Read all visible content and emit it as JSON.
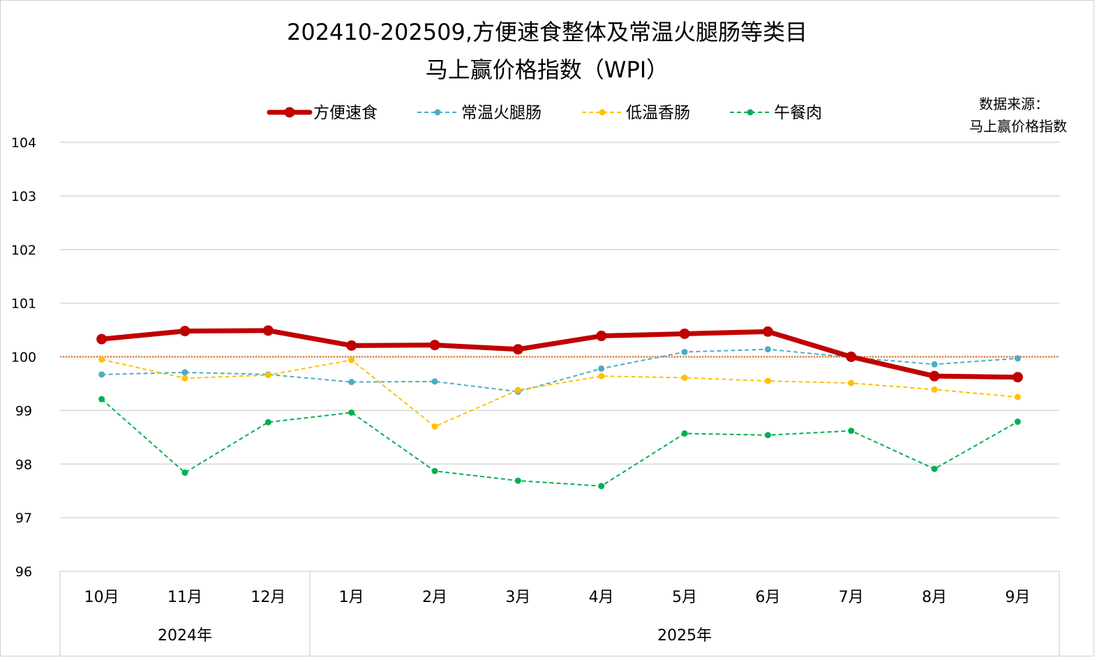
{
  "chart_data": {
    "type": "line",
    "title_line1": "202410-202509,方便速食整体及常温火腿肠等类目",
    "title_line2": "马上赢价格指数（WPI）",
    "source_label_line1": "数据来源：",
    "source_label_line2": "马上赢价格指数",
    "categories": [
      "10月",
      "11月",
      "12月",
      "1月",
      "2月",
      "3月",
      "4月",
      "5月",
      "6月",
      "7月",
      "8月",
      "9月"
    ],
    "year_groups": [
      {
        "label": "2024年",
        "count": 3
      },
      {
        "label": "2025年",
        "count": 9
      }
    ],
    "ylim": [
      96,
      104
    ],
    "yticks": [
      "96",
      "97",
      "98",
      "99",
      "100",
      "101",
      "102",
      "103",
      "104"
    ],
    "reference_line": {
      "value": 100,
      "color": "#ED7D31",
      "style": "dotted"
    },
    "grid": true,
    "legend_position": "top",
    "series": [
      {
        "name": "方便速食",
        "color": "#C00000",
        "style": "solid-thick",
        "values": [
          100.33,
          100.48,
          100.49,
          100.21,
          100.22,
          100.14,
          100.39,
          100.43,
          100.47,
          100.0,
          99.64,
          99.62
        ]
      },
      {
        "name": "常温火腿肠",
        "color": "#4BACC6",
        "style": "dashed",
        "values": [
          99.67,
          99.71,
          99.67,
          99.53,
          99.54,
          99.35,
          99.78,
          100.09,
          100.14,
          99.99,
          99.86,
          99.97
        ]
      },
      {
        "name": "低温香肠",
        "color": "#FFC000",
        "style": "dashed",
        "values": [
          99.95,
          99.6,
          99.66,
          99.94,
          98.7,
          99.38,
          99.64,
          99.61,
          99.55,
          99.51,
          99.39,
          99.25
        ]
      },
      {
        "name": "午餐肉",
        "color": "#00B050",
        "style": "dashed",
        "values": [
          99.21,
          97.84,
          98.78,
          98.96,
          97.87,
          97.69,
          97.59,
          98.57,
          98.54,
          98.62,
          97.91,
          98.79
        ]
      }
    ]
  }
}
